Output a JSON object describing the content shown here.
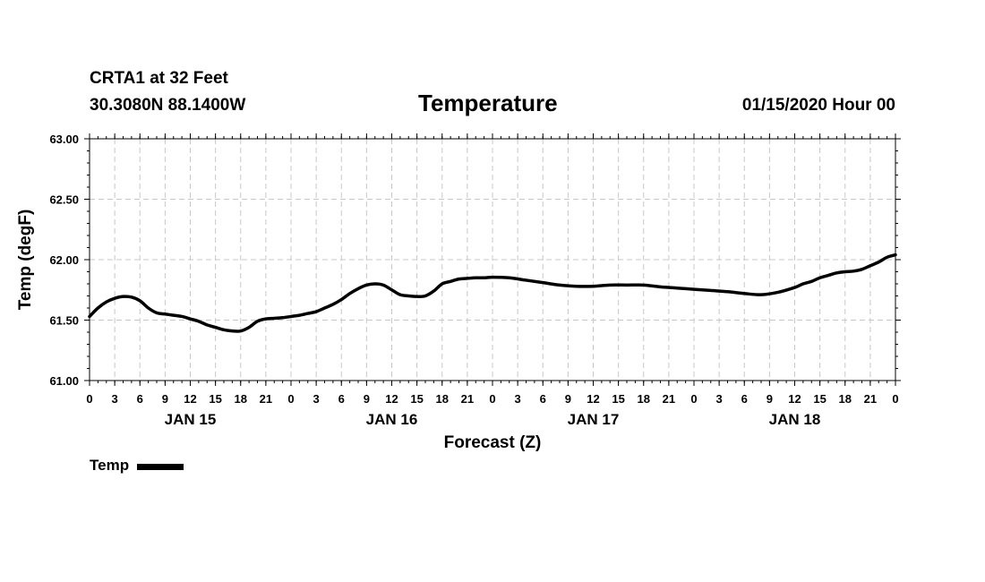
{
  "header": {
    "station": "CRTA1 at 32 Feet",
    "coordinates": "30.3080N 88.1400W",
    "title": "Temperature",
    "datetime": "01/15/2020 Hour 00"
  },
  "chart_data": {
    "type": "line",
    "title": "Temperature",
    "xlabel": "Forecast (Z)",
    "ylabel": "Temp (degF)",
    "ylim": [
      61.0,
      63.0
    ],
    "yticks": [
      "63.00",
      "62.50",
      "62.00",
      "61.50",
      "61.00"
    ],
    "xlim_hours": [
      0,
      96
    ],
    "xtick_labels": [
      "0",
      "3",
      "6",
      "9",
      "12",
      "15",
      "18",
      "21",
      "0",
      "3",
      "6",
      "9",
      "12",
      "15",
      "18",
      "21",
      "0",
      "3",
      "6",
      "9",
      "12",
      "15",
      "18",
      "21",
      "0",
      "3",
      "6",
      "9",
      "12",
      "15",
      "18",
      "21",
      "0"
    ],
    "day_labels": [
      "JAN 15",
      "JAN 16",
      "JAN 17",
      "JAN 18"
    ],
    "grid": true,
    "legend": "bottom-left",
    "series": [
      {
        "name": "Temp",
        "color": "#000000",
        "x_hours": [
          0,
          1,
          2,
          3,
          4,
          5,
          6,
          7,
          8,
          9,
          10,
          11,
          12,
          13,
          14,
          15,
          16,
          17,
          18,
          19,
          20,
          21,
          22,
          23,
          24,
          25,
          26,
          27,
          28,
          29,
          30,
          31,
          32,
          33,
          34,
          35,
          36,
          37,
          38,
          39,
          40,
          41,
          42,
          43,
          44,
          45,
          46,
          47,
          48,
          50,
          52,
          54,
          56,
          58,
          60,
          62,
          64,
          66,
          68,
          70,
          72,
          74,
          76,
          78,
          80,
          82,
          84,
          85,
          86,
          87,
          88,
          89,
          90,
          91,
          92,
          93,
          94,
          95,
          96
        ],
        "values": [
          61.53,
          61.6,
          61.65,
          61.68,
          61.695,
          61.69,
          61.66,
          61.6,
          61.56,
          61.55,
          61.54,
          61.53,
          61.51,
          61.49,
          61.46,
          61.44,
          61.42,
          61.41,
          61.41,
          61.44,
          61.49,
          61.51,
          61.515,
          61.52,
          61.53,
          61.54,
          61.555,
          61.57,
          61.6,
          61.63,
          61.67,
          61.72,
          61.76,
          61.79,
          61.8,
          61.79,
          61.75,
          61.71,
          61.7,
          61.695,
          61.7,
          61.74,
          61.8,
          61.82,
          61.84,
          61.845,
          61.85,
          61.85,
          61.855,
          61.85,
          61.83,
          61.81,
          61.79,
          61.78,
          61.78,
          61.79,
          61.79,
          61.79,
          61.775,
          61.765,
          61.755,
          61.745,
          61.735,
          61.72,
          61.71,
          61.73,
          61.77,
          61.8,
          61.82,
          61.85,
          61.87,
          61.89,
          61.9,
          61.905,
          61.92,
          61.95,
          61.98,
          62.02,
          62.04
        ]
      }
    ]
  }
}
